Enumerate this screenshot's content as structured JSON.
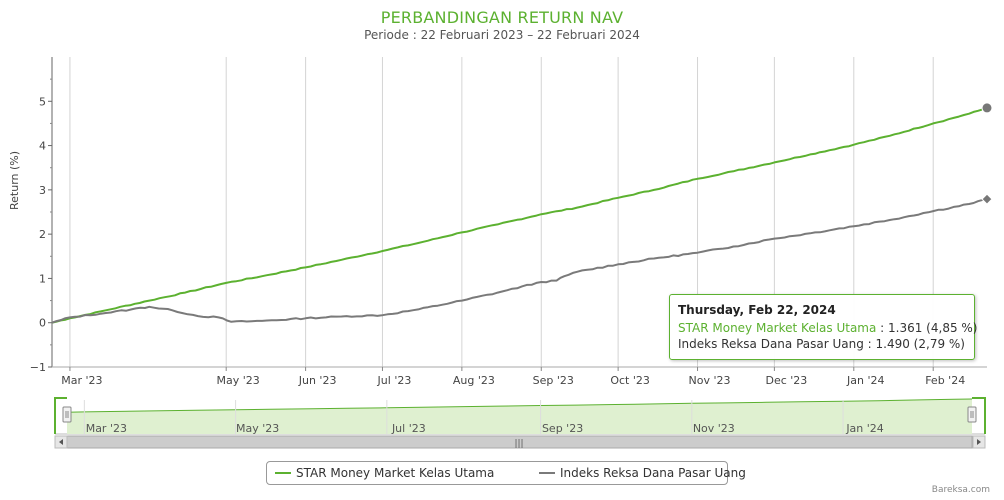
{
  "title": "PERBANDINGAN RETURN NAV",
  "subtitle": "Periode : 22 Februari 2023 – 22 Februari 2024",
  "credit": "Bareksa.com",
  "colors": {
    "fund": "#5cb130",
    "index": "#7a7a7a"
  },
  "tooltip": {
    "date": "Thursday, Feb 22, 2024",
    "fund_name": "STAR Money Market Kelas Utama",
    "fund_value": " : 1.361 (4,85 %)",
    "index_name": "Indeks Reksa Dana Pasar Uang",
    "index_value": " : 1.490 (2,79 %)"
  },
  "legend": {
    "fund": "STAR Money Market Kelas Utama",
    "index": "Indeks Reksa Dana Pasar Uang"
  },
  "navigator": {
    "ticks": [
      "Mar '23",
      "May '23",
      "Jul '23",
      "Sep '23",
      "Nov '23",
      "Jan '24"
    ],
    "scrollbar_grip": "|||"
  },
  "chart_data": {
    "type": "line",
    "title": "PERBANDINGAN RETURN NAV",
    "subtitle": "Periode : 22 Februari 2023 – 22 Februari 2024",
    "ylabel": "Return (%)",
    "ylim": [
      -1,
      6
    ],
    "yticks": [
      "−1",
      "0",
      "1",
      "2",
      "3",
      "4",
      "5"
    ],
    "xlim": [
      "2023-02-22",
      "2024-02-22"
    ],
    "xticks": [
      {
        "date": "2023-03-01",
        "label": "Mar '23"
      },
      {
        "date": "2023-05-01",
        "label": "May '23"
      },
      {
        "date": "2023-06-01",
        "label": "Jun '23"
      },
      {
        "date": "2023-07-01",
        "label": "Jul '23"
      },
      {
        "date": "2023-08-01",
        "label": "Aug '23"
      },
      {
        "date": "2023-09-01",
        "label": "Sep '23"
      },
      {
        "date": "2023-10-01",
        "label": "Oct '23"
      },
      {
        "date": "2023-11-01",
        "label": "Nov '23"
      },
      {
        "date": "2023-12-01",
        "label": "Dec '23"
      },
      {
        "date": "2024-01-01",
        "label": "Jan '24"
      },
      {
        "date": "2024-02-01",
        "label": "Feb '24"
      }
    ],
    "grid": "vertical",
    "legend_position": "bottom",
    "series": [
      {
        "name": "STAR Money Market Kelas Utama",
        "points": [
          [
            "2023-02-22",
            0.0
          ],
          [
            "2023-03-01",
            0.1
          ],
          [
            "2023-03-15",
            0.28
          ],
          [
            "2023-04-01",
            0.5
          ],
          [
            "2023-04-15",
            0.68
          ],
          [
            "2023-05-01",
            0.9
          ],
          [
            "2023-05-15",
            1.05
          ],
          [
            "2023-06-01",
            1.25
          ],
          [
            "2023-06-15",
            1.42
          ],
          [
            "2023-07-01",
            1.62
          ],
          [
            "2023-07-15",
            1.8
          ],
          [
            "2023-08-01",
            2.04
          ],
          [
            "2023-08-15",
            2.22
          ],
          [
            "2023-09-01",
            2.45
          ],
          [
            "2023-09-15",
            2.6
          ],
          [
            "2023-10-01",
            2.82
          ],
          [
            "2023-10-15",
            3.0
          ],
          [
            "2023-11-01",
            3.25
          ],
          [
            "2023-11-15",
            3.42
          ],
          [
            "2023-12-01",
            3.62
          ],
          [
            "2023-12-15",
            3.8
          ],
          [
            "2024-01-01",
            4.02
          ],
          [
            "2024-01-15",
            4.22
          ],
          [
            "2024-02-01",
            4.5
          ],
          [
            "2024-02-15",
            4.72
          ],
          [
            "2024-02-22",
            4.85
          ]
        ]
      },
      {
        "name": "Indeks Reksa Dana Pasar Uang",
        "points": [
          [
            "2023-02-22",
            0.0
          ],
          [
            "2023-03-01",
            0.12
          ],
          [
            "2023-03-15",
            0.22
          ],
          [
            "2023-03-25",
            0.3
          ],
          [
            "2023-04-01",
            0.36
          ],
          [
            "2023-04-10",
            0.28
          ],
          [
            "2023-04-20",
            0.15
          ],
          [
            "2023-04-28",
            0.12
          ],
          [
            "2023-05-03",
            0.02
          ],
          [
            "2023-05-15",
            0.04
          ],
          [
            "2023-06-01",
            0.1
          ],
          [
            "2023-06-15",
            0.14
          ],
          [
            "2023-07-01",
            0.17
          ],
          [
            "2023-07-15",
            0.3
          ],
          [
            "2023-08-01",
            0.5
          ],
          [
            "2023-08-15",
            0.68
          ],
          [
            "2023-09-01",
            0.92
          ],
          [
            "2023-09-07",
            0.95
          ],
          [
            "2023-09-10",
            1.05
          ],
          [
            "2023-09-15",
            1.15
          ],
          [
            "2023-10-01",
            1.32
          ],
          [
            "2023-10-15",
            1.45
          ],
          [
            "2023-11-01",
            1.58
          ],
          [
            "2023-11-15",
            1.72
          ],
          [
            "2023-12-01",
            1.9
          ],
          [
            "2023-12-15",
            2.02
          ],
          [
            "2024-01-01",
            2.18
          ],
          [
            "2024-01-15",
            2.32
          ],
          [
            "2024-02-01",
            2.52
          ],
          [
            "2024-02-15",
            2.68
          ],
          [
            "2024-02-22",
            2.79
          ]
        ]
      }
    ]
  }
}
